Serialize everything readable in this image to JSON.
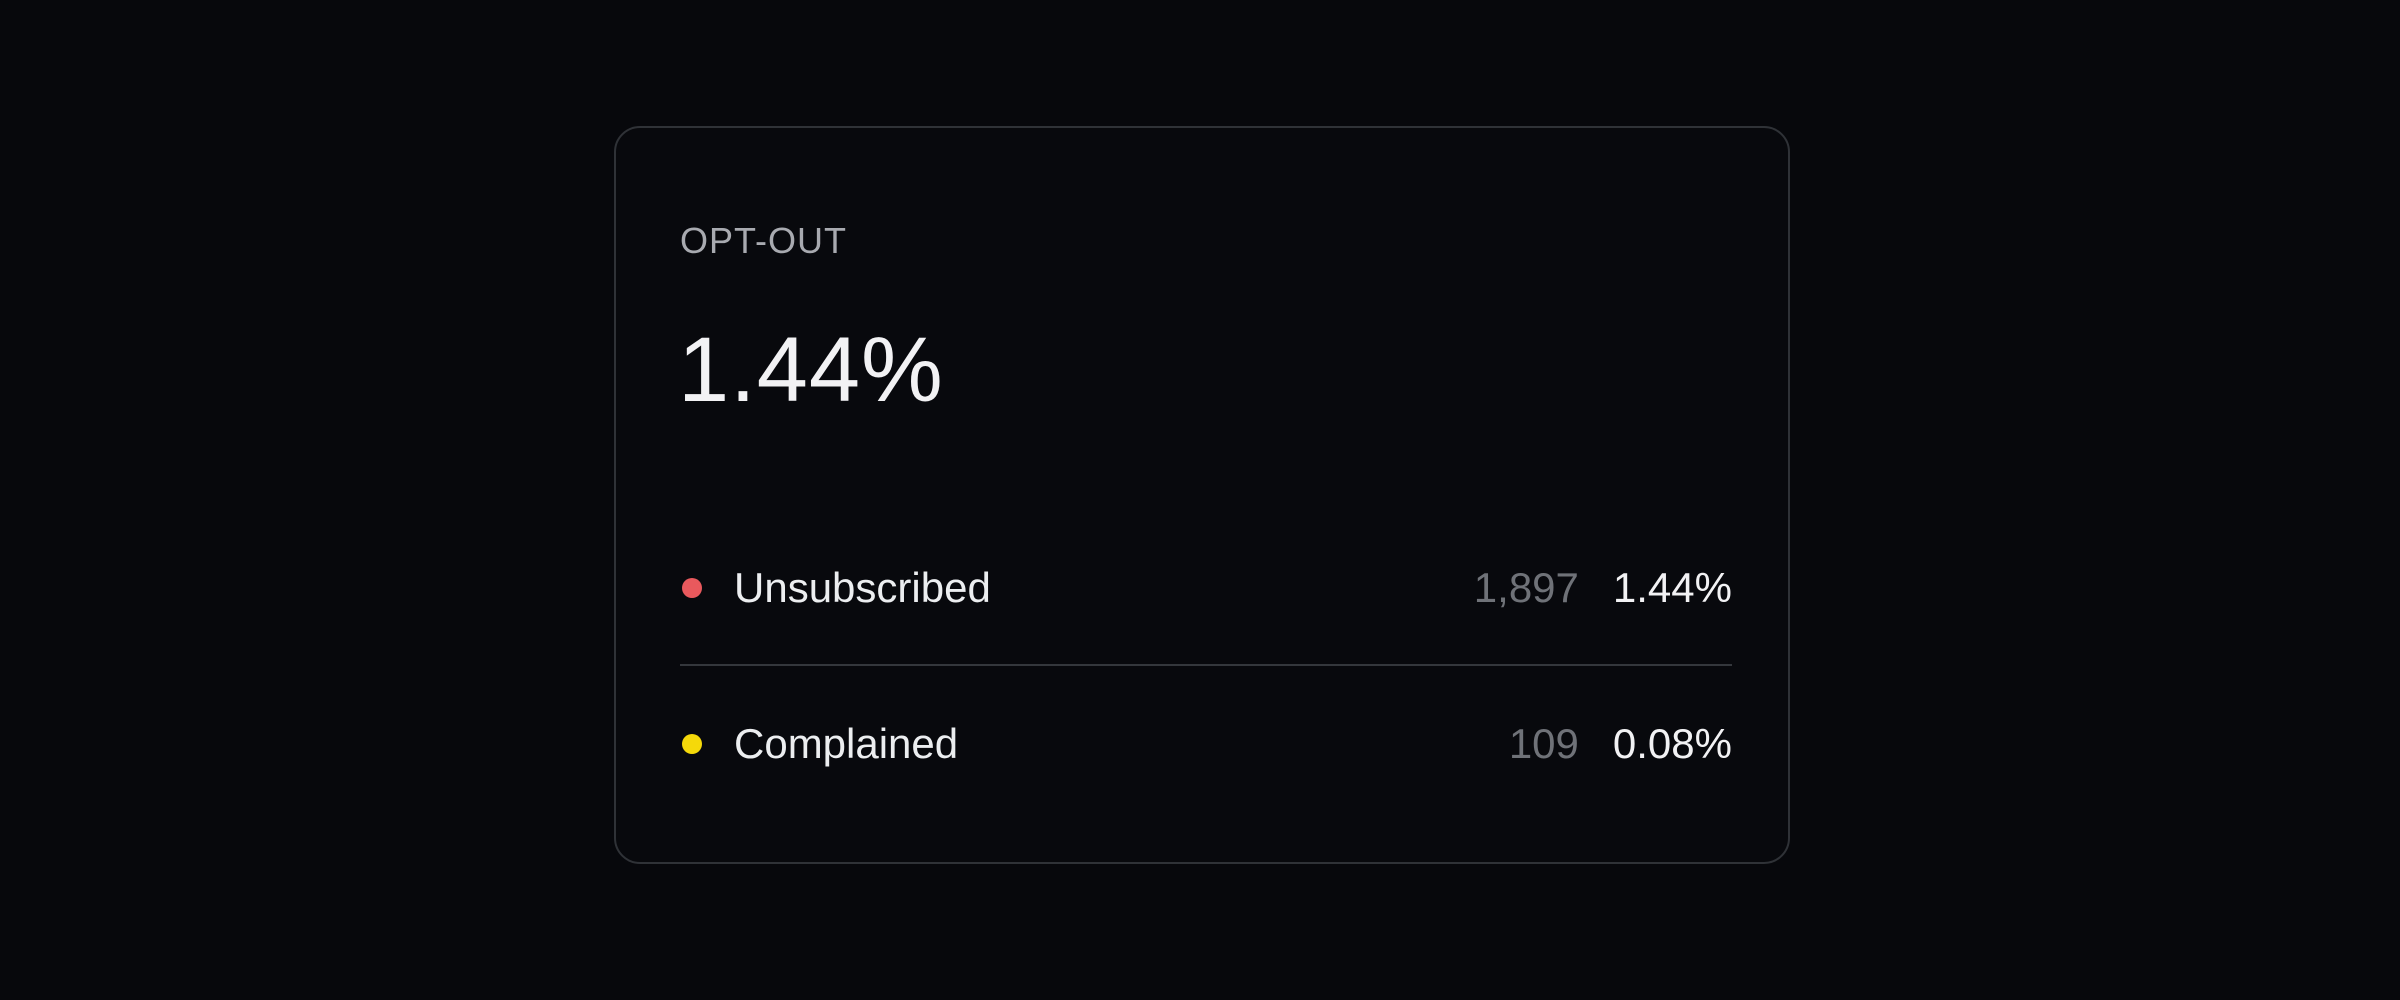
{
  "card": {
    "title": "OPT-OUT",
    "value": "1.44%",
    "rows": [
      {
        "label": "Unsubscribed",
        "count": "1,897",
        "percent": "1.44%",
        "color": "#e9595d"
      },
      {
        "label": "Complained",
        "count": "109",
        "percent": "0.08%",
        "color": "#f5d90a"
      }
    ]
  }
}
